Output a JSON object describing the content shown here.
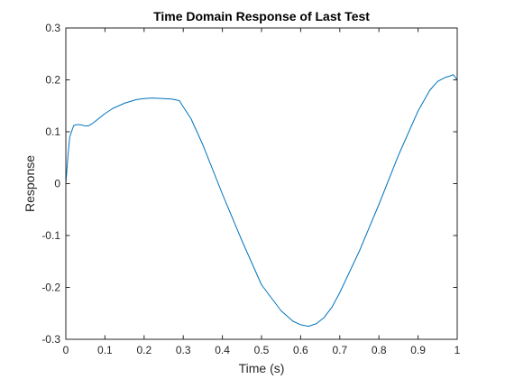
{
  "chart_data": {
    "type": "line",
    "title": "Time Domain Response of Last Test",
    "xlabel": "Time (s)",
    "ylabel": "Response",
    "xlim": [
      0,
      1
    ],
    "ylim": [
      -0.3,
      0.3
    ],
    "x_ticks": [
      0,
      0.1,
      0.2,
      0.3,
      0.4,
      0.5,
      0.6,
      0.7,
      0.8,
      0.9,
      1
    ],
    "x_tick_labels": [
      "0",
      "0.1",
      "0.2",
      "0.3",
      "0.4",
      "0.5",
      "0.6",
      "0.7",
      "0.8",
      "0.9",
      "1"
    ],
    "y_ticks": [
      -0.3,
      -0.2,
      -0.1,
      0,
      0.1,
      0.2,
      0.3
    ],
    "y_tick_labels": [
      "-0.3",
      "-0.2",
      "-0.1",
      "0",
      "0.1",
      "0.2",
      "0.3"
    ],
    "grid": false,
    "legend": "none",
    "line_color": "#0072BD",
    "series": [
      {
        "x": [
          0,
          0.005,
          0.01,
          0.02,
          0.03,
          0.04,
          0.05,
          0.06,
          0.07,
          0.08,
          0.1,
          0.12,
          0.15,
          0.18,
          0.2,
          0.22,
          0.25,
          0.27,
          0.29,
          0.3,
          0.32,
          0.35,
          0.4,
          0.45,
          0.5,
          0.55,
          0.58,
          0.6,
          0.62,
          0.64,
          0.66,
          0.68,
          0.7,
          0.75,
          0.8,
          0.85,
          0.9,
          0.93,
          0.95,
          0.97,
          0.98,
          0.99,
          1.0
        ],
        "y": [
          0.0,
          0.05,
          0.09,
          0.112,
          0.114,
          0.113,
          0.111,
          0.112,
          0.117,
          0.123,
          0.135,
          0.145,
          0.155,
          0.162,
          0.164,
          0.165,
          0.164,
          0.163,
          0.16,
          0.148,
          0.125,
          0.075,
          -0.02,
          -0.11,
          -0.195,
          -0.245,
          -0.265,
          -0.272,
          -0.275,
          -0.27,
          -0.258,
          -0.238,
          -0.21,
          -0.13,
          -0.04,
          0.055,
          0.14,
          0.18,
          0.197,
          0.205,
          0.207,
          0.21,
          0.2
        ]
      }
    ]
  }
}
